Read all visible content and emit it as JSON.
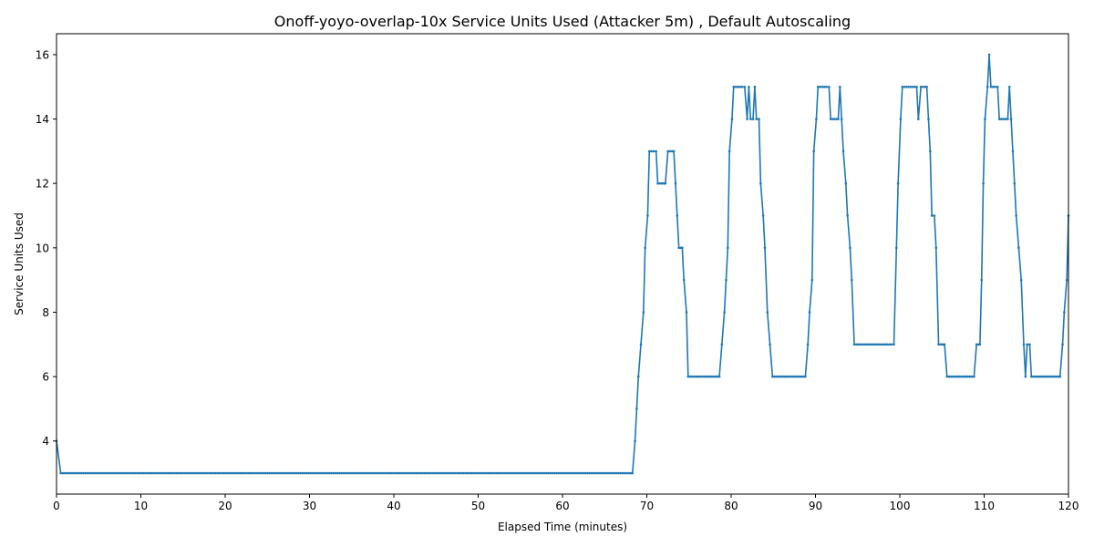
{
  "chart_data": {
    "type": "line",
    "title": "Onoff-yoyo-overlap-10x Service Units Used (Attacker 5m) , Default Autoscaling",
    "xlabel": "Elapsed Time (minutes)",
    "ylabel": "Service Units Used",
    "xlim": [
      0,
      120
    ],
    "ylim": [
      2.35,
      16.65
    ],
    "xticks": [
      0,
      10,
      20,
      30,
      40,
      50,
      60,
      70,
      80,
      90,
      100,
      110,
      120
    ],
    "yticks": [
      4,
      6,
      8,
      10,
      12,
      14,
      16
    ],
    "grid": false,
    "series_color": "#1f77b4",
    "points": [
      [
        0.0,
        4
      ],
      [
        0.5,
        3
      ],
      [
        68.3,
        3
      ],
      [
        68.6,
        4
      ],
      [
        68.8,
        5
      ],
      [
        69.0,
        6
      ],
      [
        69.3,
        7
      ],
      [
        69.6,
        8
      ],
      [
        69.8,
        10
      ],
      [
        70.1,
        11
      ],
      [
        70.3,
        13
      ],
      [
        71.1,
        13
      ],
      [
        71.3,
        12
      ],
      [
        72.2,
        12
      ],
      [
        72.5,
        13
      ],
      [
        73.2,
        13
      ],
      [
        73.4,
        12
      ],
      [
        73.6,
        11
      ],
      [
        73.8,
        10
      ],
      [
        74.2,
        10
      ],
      [
        74.4,
        9
      ],
      [
        74.7,
        8
      ],
      [
        74.9,
        6
      ],
      [
        78.6,
        6
      ],
      [
        78.9,
        7
      ],
      [
        79.2,
        8
      ],
      [
        79.4,
        9
      ],
      [
        79.6,
        10
      ],
      [
        79.8,
        13
      ],
      [
        80.1,
        14
      ],
      [
        80.3,
        15
      ],
      [
        81.6,
        15
      ],
      [
        81.9,
        14
      ],
      [
        82.1,
        15
      ],
      [
        82.3,
        14
      ],
      [
        82.6,
        14
      ],
      [
        82.8,
        15
      ],
      [
        83.0,
        14
      ],
      [
        83.3,
        14
      ],
      [
        83.5,
        12
      ],
      [
        83.8,
        11
      ],
      [
        84.0,
        10
      ],
      [
        84.3,
        8
      ],
      [
        84.6,
        7
      ],
      [
        84.9,
        6
      ],
      [
        88.8,
        6
      ],
      [
        89.1,
        7
      ],
      [
        89.3,
        8
      ],
      [
        89.6,
        9
      ],
      [
        89.8,
        13
      ],
      [
        90.1,
        14
      ],
      [
        90.3,
        15
      ],
      [
        91.6,
        15
      ],
      [
        91.8,
        14
      ],
      [
        92.7,
        14
      ],
      [
        92.9,
        15
      ],
      [
        93.1,
        14
      ],
      [
        93.3,
        13
      ],
      [
        93.6,
        12
      ],
      [
        93.8,
        11
      ],
      [
        94.1,
        10
      ],
      [
        94.3,
        9
      ],
      [
        94.6,
        7
      ],
      [
        99.3,
        7
      ],
      [
        99.6,
        10
      ],
      [
        99.8,
        12
      ],
      [
        100.1,
        14
      ],
      [
        100.3,
        15
      ],
      [
        102.0,
        15
      ],
      [
        102.2,
        14
      ],
      [
        102.5,
        15
      ],
      [
        103.2,
        15
      ],
      [
        103.4,
        14
      ],
      [
        103.6,
        13
      ],
      [
        103.8,
        11
      ],
      [
        104.1,
        11
      ],
      [
        104.3,
        10
      ],
      [
        104.6,
        7
      ],
      [
        105.3,
        7
      ],
      [
        105.6,
        6
      ],
      [
        108.8,
        6
      ],
      [
        109.1,
        7
      ],
      [
        109.5,
        7
      ],
      [
        109.7,
        9
      ],
      [
        109.9,
        12
      ],
      [
        110.1,
        14
      ],
      [
        110.4,
        15
      ],
      [
        110.6,
        16
      ],
      [
        110.8,
        15
      ],
      [
        111.6,
        15
      ],
      [
        111.8,
        14
      ],
      [
        112.8,
        14
      ],
      [
        113.0,
        15
      ],
      [
        113.2,
        14
      ],
      [
        113.4,
        13
      ],
      [
        113.6,
        12
      ],
      [
        113.8,
        11
      ],
      [
        114.1,
        10
      ],
      [
        114.4,
        9
      ],
      [
        114.7,
        7
      ],
      [
        114.9,
        6
      ],
      [
        115.1,
        7
      ],
      [
        115.4,
        7
      ],
      [
        115.6,
        6
      ],
      [
        119.0,
        6
      ],
      [
        119.3,
        7
      ],
      [
        119.5,
        8
      ],
      [
        119.8,
        9
      ],
      [
        120.0,
        11
      ]
    ]
  }
}
